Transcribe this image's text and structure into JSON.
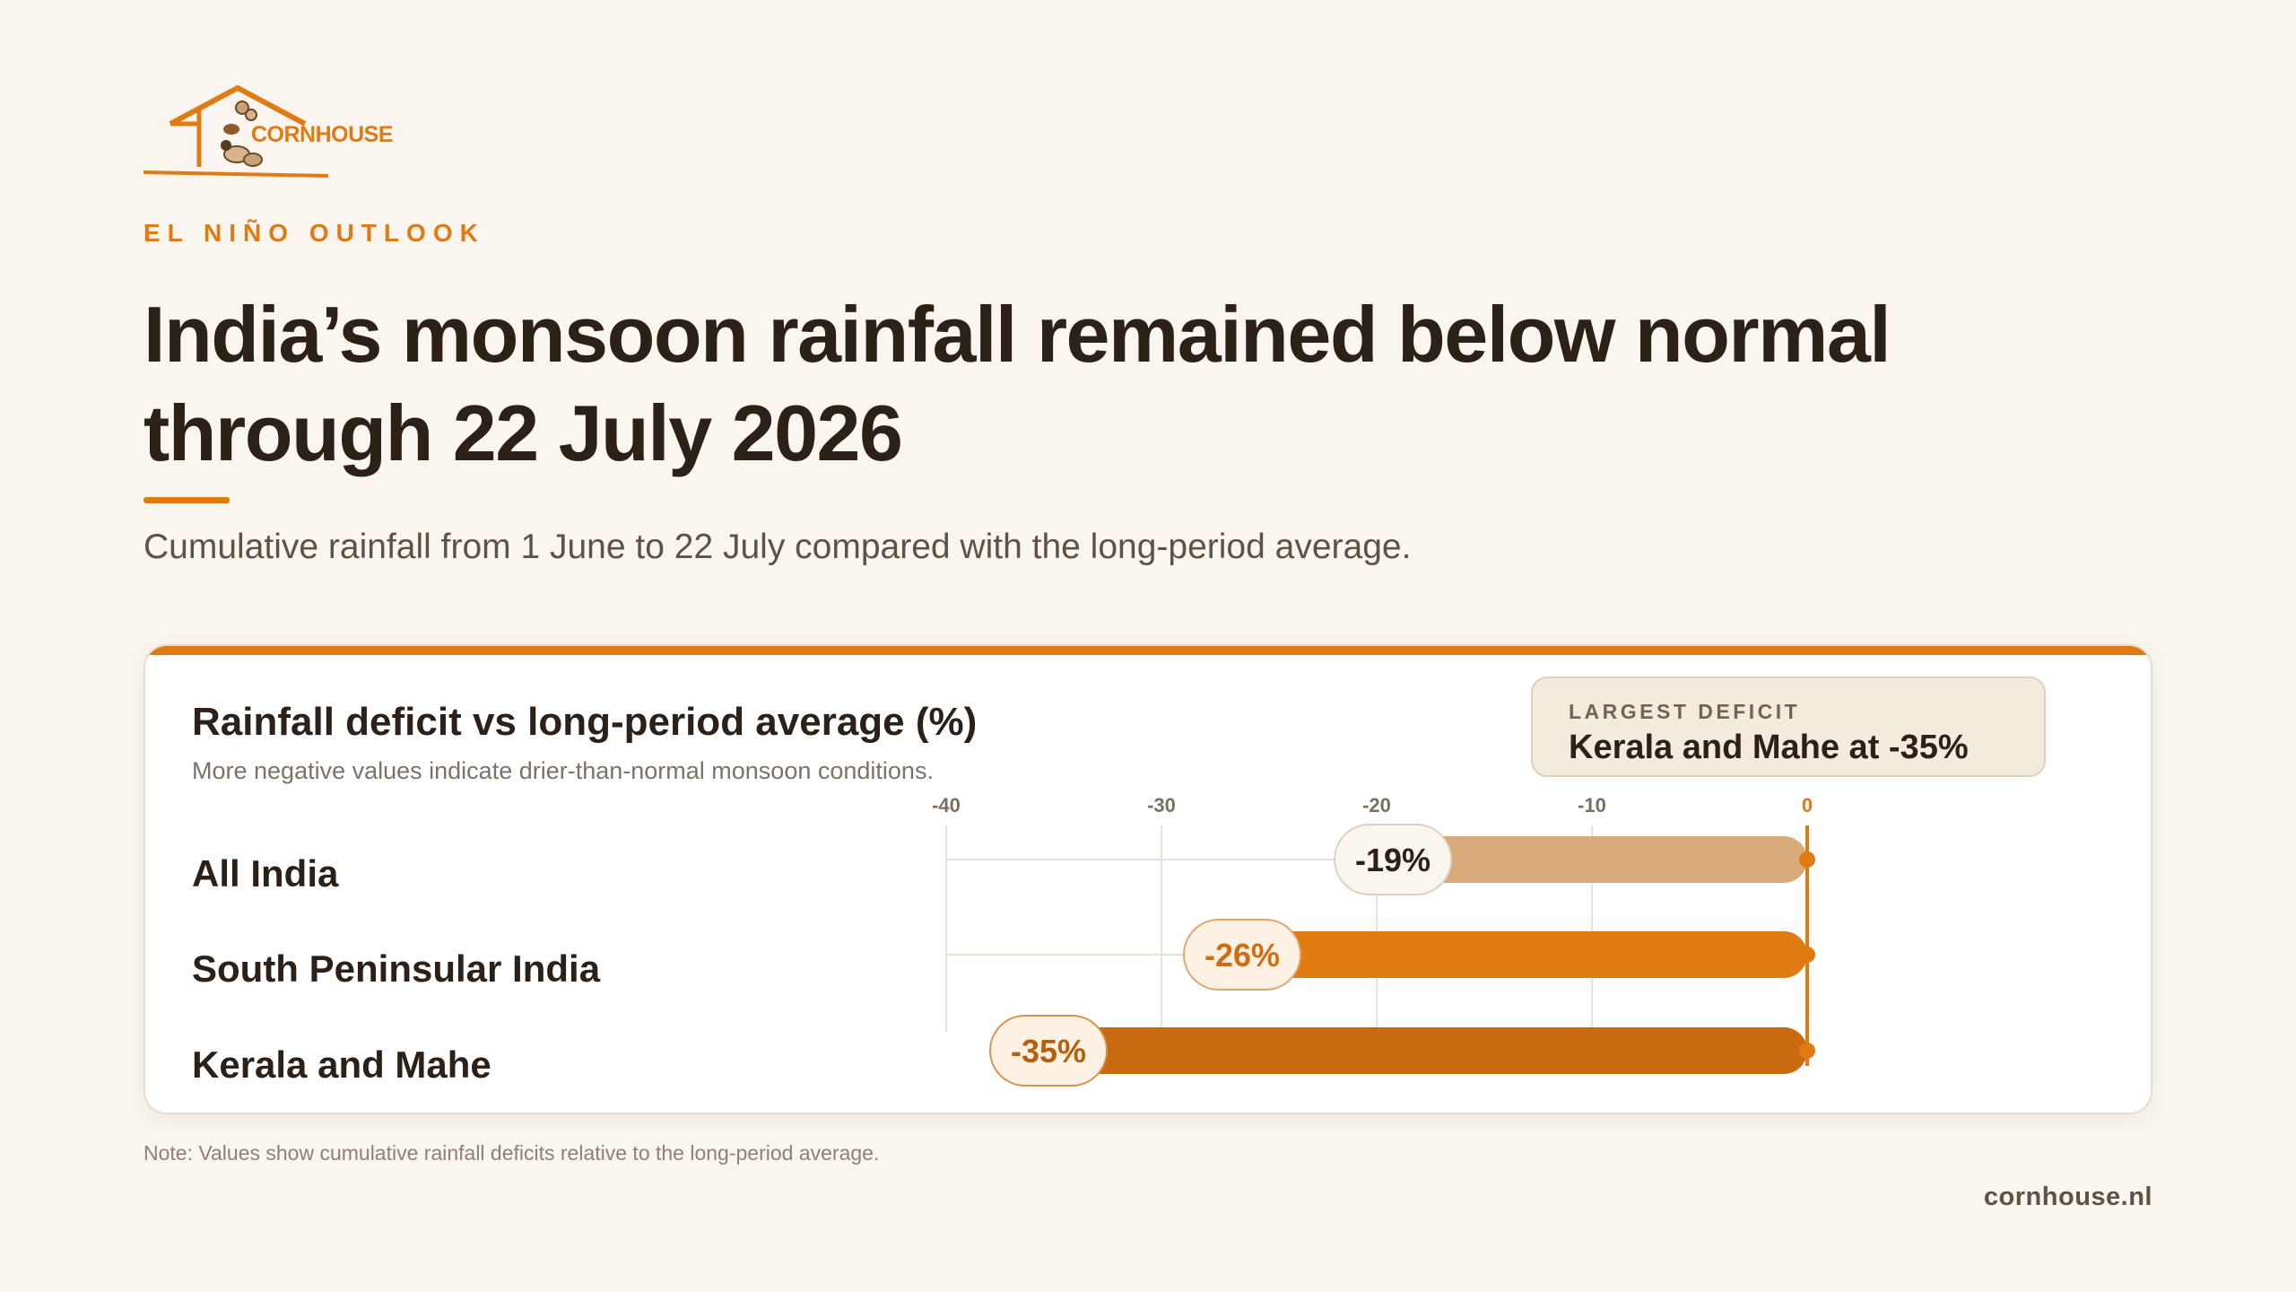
{
  "brand": {
    "logo_text": "CORNHOUSE",
    "site": "cornhouse.nl"
  },
  "kicker": "EL NIÑO OUTLOOK",
  "title_line1": "India’s monsoon rainfall remained below normal",
  "title_line2": "through 22 July 2026",
  "subtitle": "Cumulative rainfall from 1 June to 22 July compared with the long-period average.",
  "callout": {
    "label": "LARGEST DEFICIT",
    "text": "Kerala and Mahe at -35%"
  },
  "note": "Note: Values show cumulative rainfall deficits relative to the long-period average.",
  "colors": {
    "accent": "#e07a12",
    "bar_light": "#d9ab7a",
    "bar_mid": "#e07a12",
    "bar_dark": "#c86b10",
    "text_dark": "#2b2118"
  },
  "chart_data": {
    "type": "bar",
    "orientation": "horizontal",
    "title": "Rainfall deficit vs long-period average (%)",
    "subtitle": "More negative values indicate drier-than-normal monsoon conditions.",
    "categories": [
      "All India",
      "South Peninsular India",
      "Kerala and Mahe"
    ],
    "values": [
      -19,
      -26,
      -35
    ],
    "value_labels": [
      "-19%",
      "-26%",
      "-35%"
    ],
    "xlim": [
      -40,
      0
    ],
    "xticks": [
      -40,
      -30,
      -20,
      -10,
      0
    ],
    "xtick_labels": [
      "-40",
      "-30",
      "-20",
      "-10",
      "0"
    ],
    "grid": true,
    "bar_colors": [
      "#d9ab7a",
      "#e07a12",
      "#c86b10"
    ]
  }
}
